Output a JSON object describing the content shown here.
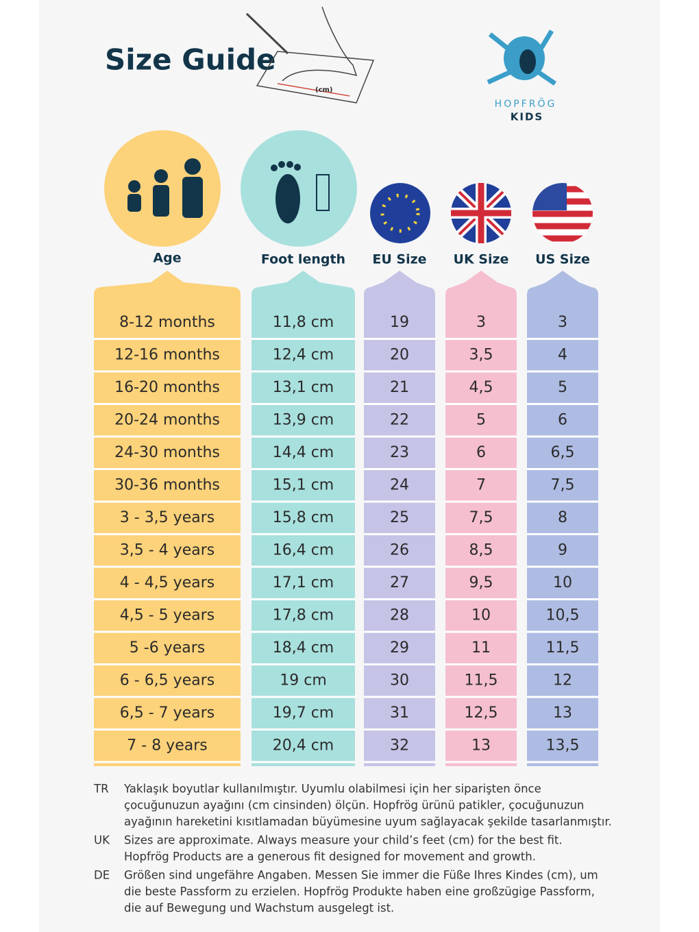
{
  "header": {
    "title": "Size Guide",
    "drawing_label": "(cm)",
    "brand": "HOPFRÖG",
    "brand_sub": "KIDS"
  },
  "table": {
    "columns": [
      "Age",
      "Foot length",
      "EU Size",
      "UK Size",
      "US Size"
    ],
    "rows": [
      [
        "8-12 months",
        "11,8 cm",
        "19",
        "3",
        "3"
      ],
      [
        "12-16 months",
        "12,4 cm",
        "20",
        "3,5",
        "4"
      ],
      [
        "16-20 months",
        "13,1 cm",
        "21",
        "4,5",
        "5"
      ],
      [
        "20-24 months",
        "13,9 cm",
        "22",
        "5",
        "6"
      ],
      [
        "24-30 months",
        "14,4 cm",
        "23",
        "6",
        "6,5"
      ],
      [
        "30-36 months",
        "15,1 cm",
        "24",
        "7",
        "7,5"
      ],
      [
        "3 - 3,5 years",
        "15,8 cm",
        "25",
        "7,5",
        "8"
      ],
      [
        "3,5 - 4 years",
        "16,4 cm",
        "26",
        "8,5",
        "9"
      ],
      [
        "4 - 4,5 years",
        "17,1 cm",
        "27",
        "9,5",
        "10"
      ],
      [
        "4,5 - 5 years",
        "17,8 cm",
        "28",
        "10",
        "10,5"
      ],
      [
        "5 -6 years",
        "18,4 cm",
        "29",
        "11",
        "11,5"
      ],
      [
        "6 - 6,5 years",
        "19 cm",
        "30",
        "11,5",
        "12"
      ],
      [
        "6,5 - 7 years",
        "19,7 cm",
        "31",
        "12,5",
        "13"
      ],
      [
        "7 - 8 years",
        "20,4 cm",
        "32",
        "13",
        "13,5"
      ]
    ]
  },
  "notes": [
    {
      "lang": "TR",
      "lines": [
        "Yaklaşık boyutlar kullanılmıştır. Uyumlu olabilmesi için her siparişten önce",
        "çocuğunuzun ayağını (cm cinsinden) ölçün. Hopfrög ürünü patikler, çocuğunuzun",
        "ayağının hareketini kısıtlamadan büyümesine uyum sağlayacak şekilde tasarlanmıştır."
      ]
    },
    {
      "lang": "UK",
      "lines": [
        "Sizes are approximate. Always measure your child’s feet (cm) for the best fit.",
        "Hopfrög Products are a generous fit designed for movement and growth."
      ]
    },
    {
      "lang": "DE",
      "lines": [
        "Größen sind ungefähre Angaben. Messen Sie immer die Füße Ihres Kindes (cm), um",
        "die beste Passform zu erzielen. Hopfrög Produkte haben eine großzügige Passform,",
        "die auf Bewegung und Wachstum ausgelegt ist."
      ]
    }
  ]
}
